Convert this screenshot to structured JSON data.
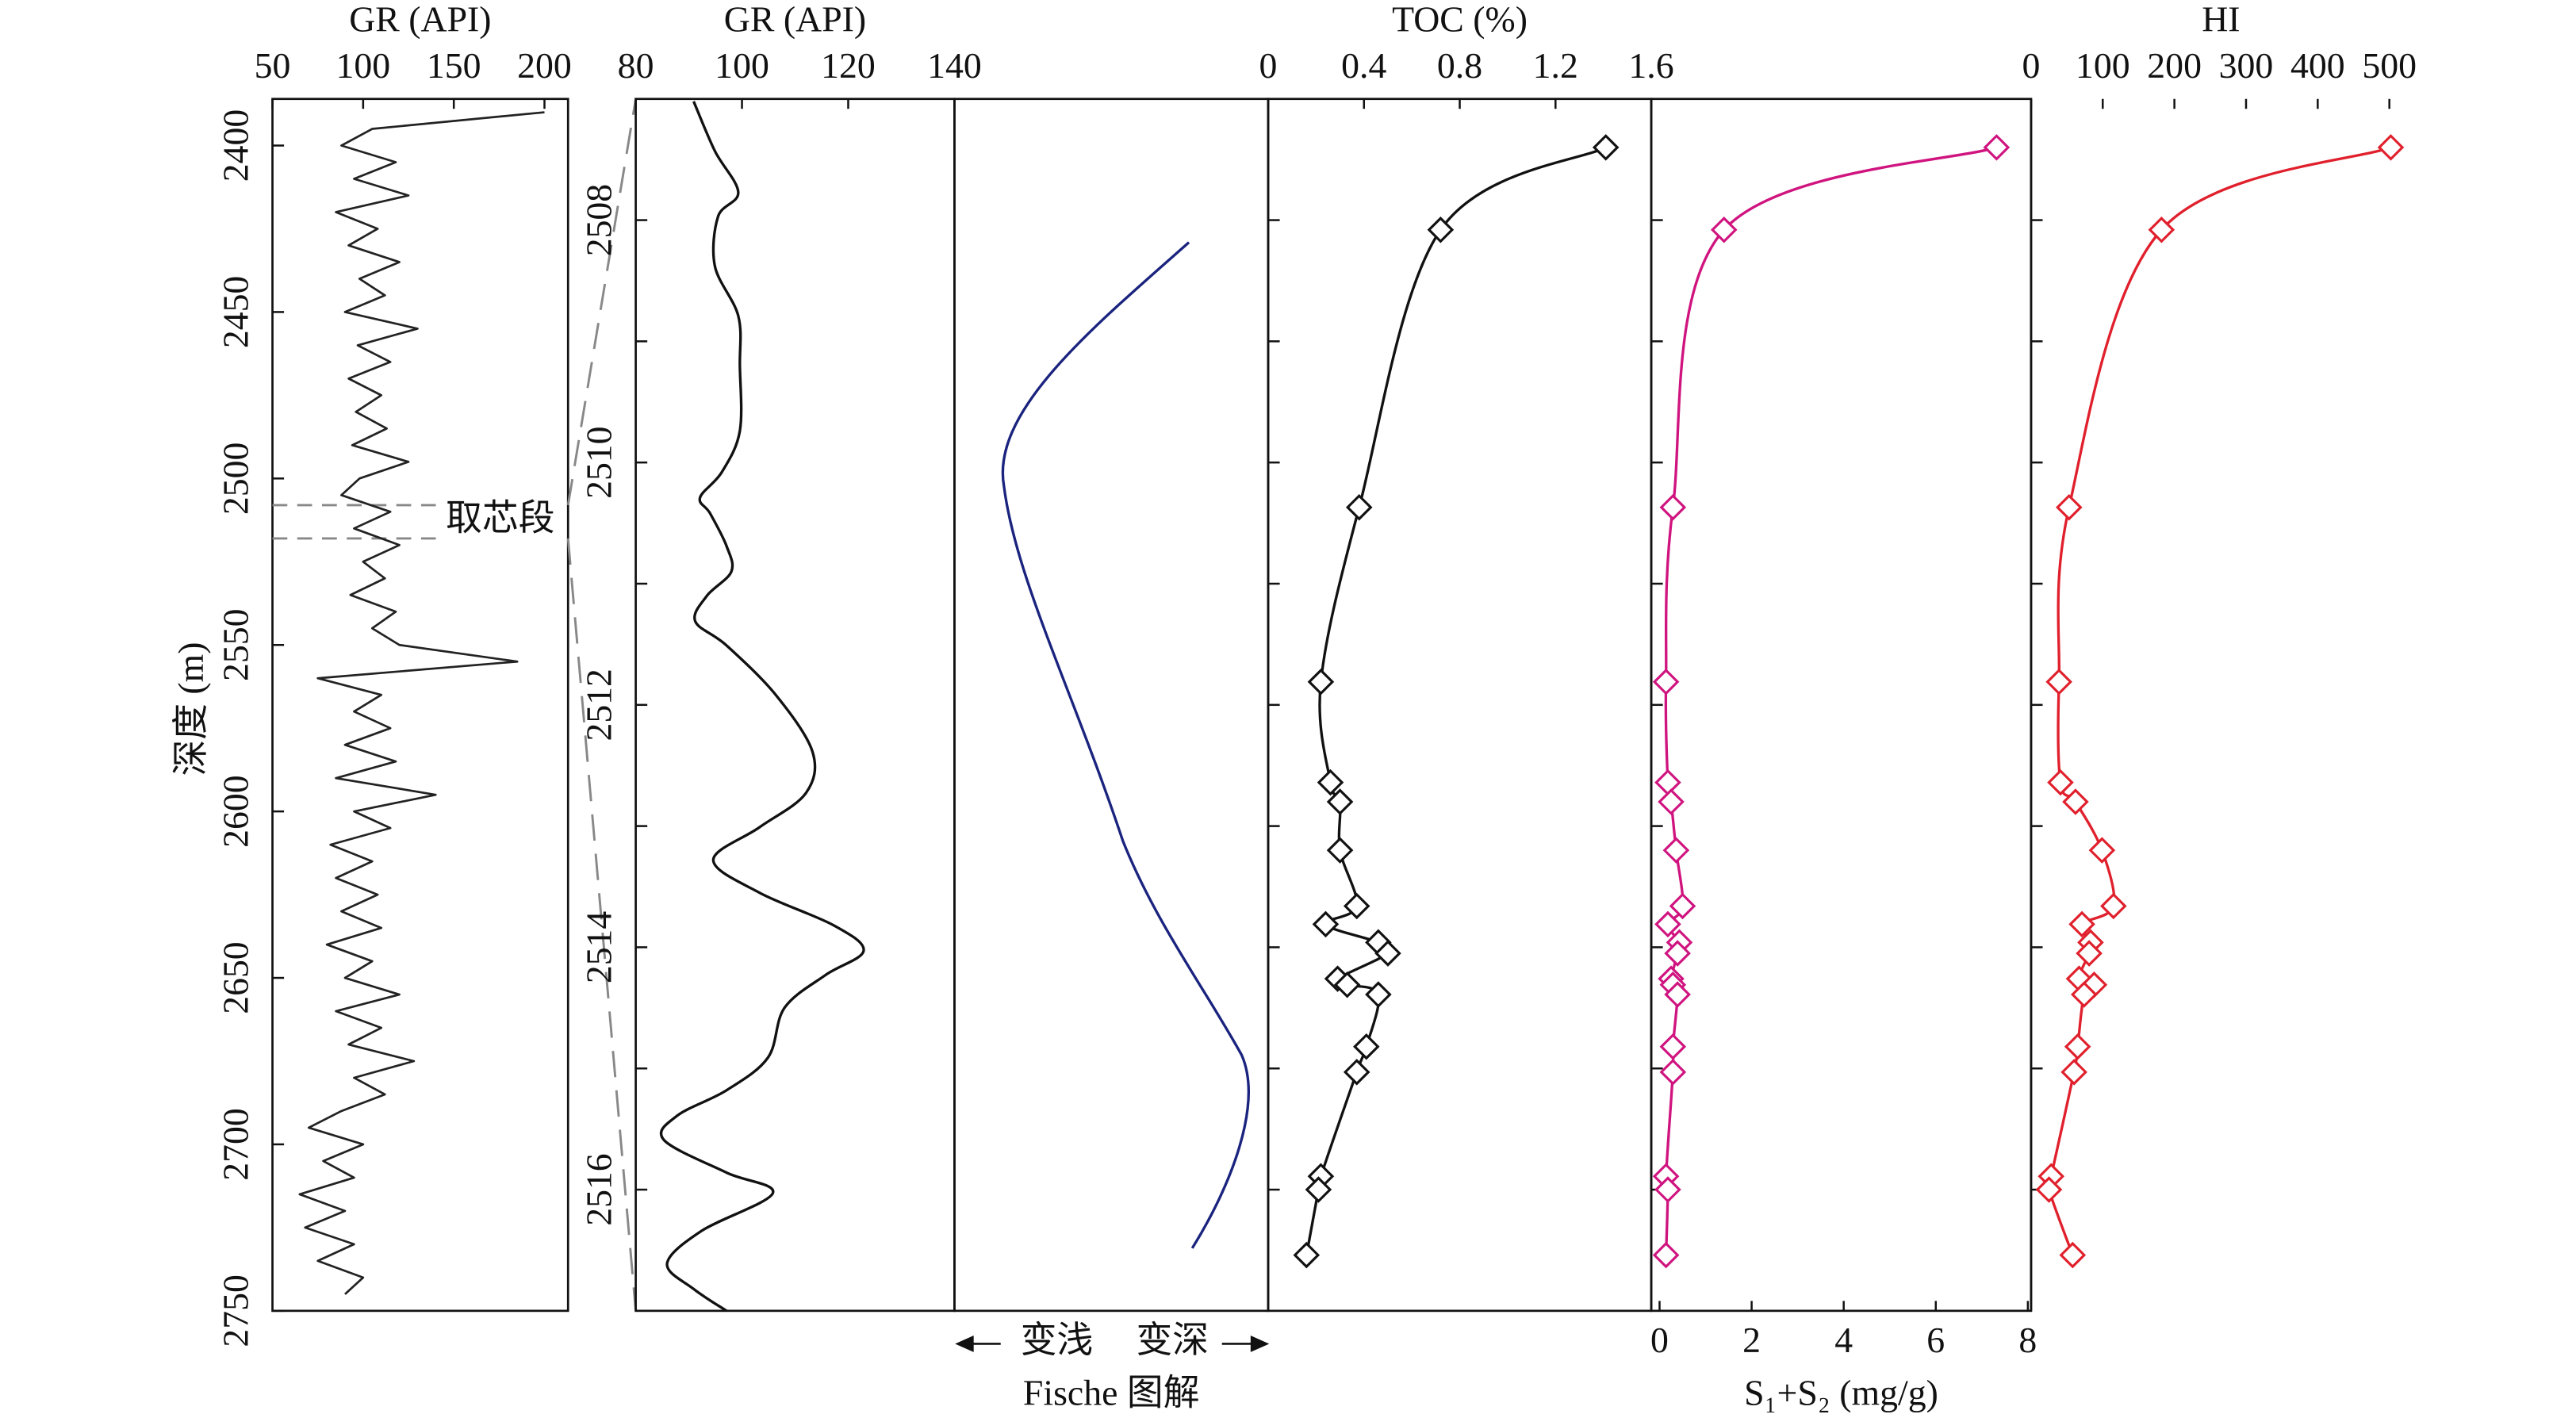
{
  "chart_data": [
    {
      "type": "line",
      "title": "GR (API)",
      "ylabel": "深度 (m)",
      "color": "#222222",
      "xlim": [
        50,
        213
      ],
      "xticks": [
        50,
        100,
        150,
        200
      ],
      "ylim": [
        2386,
        2750
      ],
      "yticks": [
        2400,
        2450,
        2500,
        2550,
        2600,
        2650,
        2700,
        2750
      ],
      "annotation": {
        "text": "取芯段",
        "depths": [
          2508,
          2518
        ]
      },
      "y": [
        2390,
        2395,
        2400,
        2405,
        2410,
        2415,
        2420,
        2425,
        2430,
        2435,
        2440,
        2445,
        2450,
        2455,
        2460,
        2465,
        2470,
        2475,
        2480,
        2485,
        2490,
        2495,
        2500,
        2505,
        2510,
        2515,
        2520,
        2525,
        2530,
        2535,
        2540,
        2545,
        2550,
        2555,
        2560,
        2565,
        2570,
        2575,
        2580,
        2585,
        2590,
        2595,
        2600,
        2605,
        2610,
        2615,
        2620,
        2625,
        2630,
        2635,
        2640,
        2645,
        2650,
        2655,
        2660,
        2665,
        2670,
        2675,
        2680,
        2685,
        2690,
        2695,
        2700,
        2705,
        2710,
        2715,
        2720,
        2725,
        2730,
        2735,
        2740,
        2745
      ],
      "x": [
        200,
        105,
        88,
        118,
        95,
        125,
        85,
        108,
        92,
        120,
        98,
        112,
        90,
        130,
        97,
        115,
        92,
        110,
        96,
        113,
        94,
        125,
        98,
        88,
        115,
        95,
        120,
        100,
        112,
        93,
        118,
        105,
        120,
        185,
        75,
        110,
        95,
        115,
        90,
        118,
        85,
        140,
        95,
        115,
        82,
        105,
        85,
        108,
        88,
        110,
        80,
        105,
        90,
        120,
        85,
        110,
        92,
        128,
        95,
        112,
        88,
        70,
        100,
        78,
        95,
        65,
        90,
        68,
        95,
        75,
        100,
        90
      ]
    },
    {
      "type": "line",
      "title": "GR (API)",
      "color": "#111111",
      "smooth": true,
      "xlim": [
        80,
        140
      ],
      "xticks": [
        80,
        100,
        120,
        140
      ],
      "ylim": [
        2507,
        2517
      ],
      "yticks": [
        2508,
        2510,
        2512,
        2514,
        2516
      ],
      "minor_yticks": [
        2509,
        2511,
        2513,
        2515
      ],
      "y": [
        2507.02,
        2507.43,
        2507.77,
        2507.97,
        2508.38,
        2508.79,
        2509.2,
        2509.74,
        2510.08,
        2510.29,
        2510.42,
        2510.69,
        2510.9,
        2511.1,
        2511.31,
        2511.51,
        2511.92,
        2512.39,
        2512.73,
        2513.01,
        2513.28,
        2513.55,
        2513.82,
        2514.03,
        2514.23,
        2514.5,
        2514.91,
        2515.18,
        2515.39,
        2515.59,
        2515.86,
        2516.03,
        2516.34,
        2516.61,
        2516.82,
        2517
      ],
      "x": [
        90.9,
        94.9,
        99.3,
        95.5,
        94.9,
        99.3,
        99.6,
        99.6,
        96.2,
        92.1,
        94,
        97.1,
        98,
        93.4,
        91.2,
        97.1,
        106.4,
        113.3,
        112,
        103.3,
        94.6,
        103.3,
        117.3,
        122.9,
        115.7,
        108,
        104.9,
        97.1,
        87.8,
        85.3,
        97.1,
        105.8,
        92.4,
        85.9,
        90.9,
        97.1
      ]
    },
    {
      "type": "fischer",
      "xlabel": "Fische 图解",
      "annotations": [
        "变浅",
        "变深"
      ],
      "color": "#1a237e"
    },
    {
      "type": "line",
      "title": "TOC (%)",
      "color": "#111111",
      "smooth": true,
      "marker": "diamond",
      "xlim": [
        0,
        1.6
      ],
      "xticks": [
        0,
        0.4,
        0.8,
        1.2,
        1.6
      ],
      "y": [
        2507.4,
        2508.08,
        2510.37,
        2511.81,
        2512.64,
        2512.8,
        2513.2,
        2513.66,
        2513.81,
        2513.96,
        2514.05,
        2514.26,
        2514.31,
        2514.39,
        2514.82,
        2515.03,
        2515.89,
        2516,
        2516.54
      ],
      "x": [
        1.41,
        0.72,
        0.38,
        0.22,
        0.26,
        0.3,
        0.3,
        0.37,
        0.24,
        0.46,
        0.5,
        0.29,
        0.33,
        0.46,
        0.41,
        0.37,
        0.22,
        0.21,
        0.16
      ]
    },
    {
      "type": "line",
      "xlabel": "S₁+S₂ (mg/g)",
      "xaxis_position": "bottom",
      "color": "#d0147f",
      "smooth": true,
      "marker": "diamond",
      "xlim": [
        -0.18,
        8.07
      ],
      "xticks": [
        0,
        2,
        4,
        6,
        8
      ],
      "y": [
        2507.4,
        2508.08,
        2510.37,
        2511.81,
        2512.64,
        2512.8,
        2513.2,
        2513.66,
        2513.81,
        2513.96,
        2514.05,
        2514.26,
        2514.31,
        2514.39,
        2514.82,
        2515.03,
        2515.89,
        2516,
        2516.54
      ],
      "x": [
        7.32,
        1.4,
        0.29,
        0.14,
        0.18,
        0.25,
        0.36,
        0.5,
        0.18,
        0.43,
        0.39,
        0.25,
        0.29,
        0.39,
        0.29,
        0.29,
        0.14,
        0.18,
        0.14
      ]
    },
    {
      "type": "line",
      "title": "HI",
      "color": "#e0202c",
      "smooth": true,
      "marker": "diamond",
      "xlim": [
        0,
        530
      ],
      "xticks": [
        0,
        100,
        200,
        300,
        400,
        500
      ],
      "y": [
        2507.4,
        2508.08,
        2510.37,
        2511.81,
        2512.64,
        2512.8,
        2513.2,
        2513.66,
        2513.81,
        2513.96,
        2514.05,
        2514.26,
        2514.31,
        2514.39,
        2514.82,
        2515.03,
        2515.89,
        2516,
        2516.54
      ],
      "x": [
        502,
        182,
        53,
        39,
        41,
        62,
        99,
        115,
        71,
        83,
        81,
        67,
        88,
        74,
        65,
        60,
        28,
        25,
        58
      ]
    }
  ]
}
